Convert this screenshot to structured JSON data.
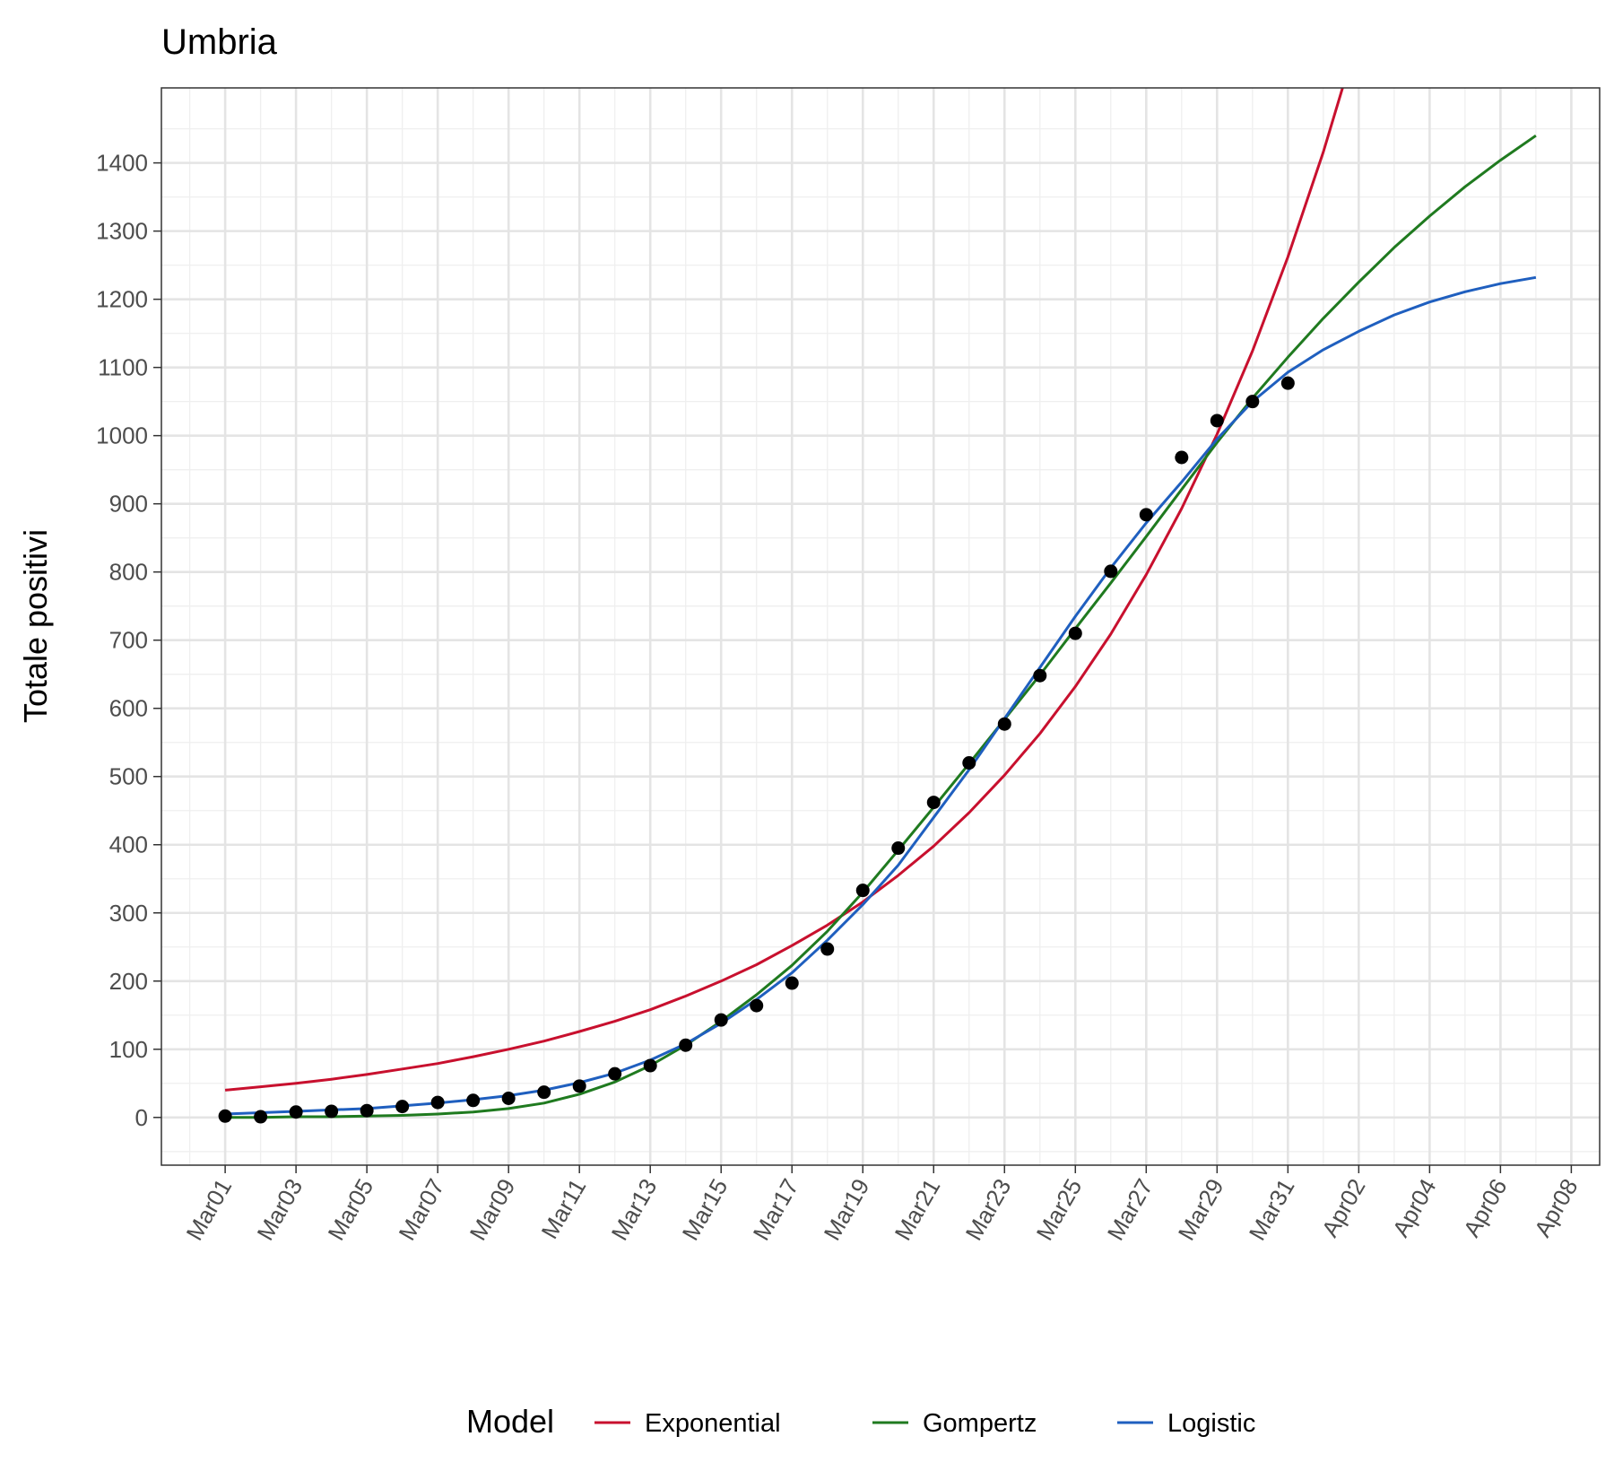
{
  "chart_data": {
    "type": "line",
    "title": "Umbria",
    "xlabel": "",
    "ylabel": "Totale positivi",
    "x_ticks": [
      "Mar01",
      "Mar03",
      "Mar05",
      "Mar07",
      "Mar09",
      "Mar11",
      "Mar13",
      "Mar15",
      "Mar17",
      "Mar19",
      "Mar21",
      "Mar23",
      "Mar25",
      "Mar27",
      "Mar29",
      "Mar31",
      "Apr02",
      "Apr04",
      "Apr06",
      "Apr08"
    ],
    "y_ticks": [
      "0",
      "100",
      "200",
      "300",
      "400",
      "500",
      "600",
      "700",
      "800",
      "900",
      "1000",
      "1100",
      "1200",
      "1300",
      "1400"
    ],
    "x_range_days": [
      -1.8,
      38.8
    ],
    "ylim": [
      -70,
      1510
    ],
    "grid": true,
    "legend": {
      "title": "Model",
      "position": "bottom",
      "entries": [
        {
          "label": "Exponential",
          "color": "#c8102e"
        },
        {
          "label": "Gompertz",
          "color": "#1f7a1f"
        },
        {
          "label": "Logistic",
          "color": "#1f5fbf"
        }
      ]
    },
    "observed": {
      "dates": [
        "Mar01",
        "Mar02",
        "Mar03",
        "Mar04",
        "Mar05",
        "Mar06",
        "Mar07",
        "Mar08",
        "Mar09",
        "Mar10",
        "Mar11",
        "Mar12",
        "Mar13",
        "Mar14",
        "Mar15",
        "Mar16",
        "Mar17",
        "Mar18",
        "Mar19",
        "Mar20",
        "Mar21",
        "Mar22",
        "Mar23",
        "Mar24",
        "Mar25",
        "Mar26",
        "Mar27",
        "Mar28",
        "Mar29",
        "Mar30",
        "Mar31"
      ],
      "values": [
        2,
        1,
        8,
        9,
        10,
        16,
        22,
        25,
        28,
        37,
        46,
        64,
        76,
        106,
        143,
        164,
        197,
        247,
        333,
        395,
        462,
        520,
        577,
        648,
        710,
        801,
        884,
        968,
        1022,
        1050,
        1077
      ]
    },
    "series": [
      {
        "name": "Exponential",
        "color": "#c8102e",
        "dates": [
          "Mar01",
          "Mar02",
          "Mar03",
          "Mar04",
          "Mar05",
          "Mar06",
          "Mar07",
          "Mar08",
          "Mar09",
          "Mar10",
          "Mar11",
          "Mar12",
          "Mar13",
          "Mar14",
          "Mar15",
          "Mar16",
          "Mar17",
          "Mar18",
          "Mar19",
          "Mar20",
          "Mar21",
          "Mar22",
          "Mar23",
          "Mar24",
          "Mar25",
          "Mar26",
          "Mar27",
          "Mar28",
          "Mar29",
          "Mar30",
          "Mar31",
          "Apr01",
          "Apr02"
        ],
        "values": [
          40,
          45,
          50,
          56,
          63,
          71,
          79,
          89,
          100,
          112,
          126,
          141,
          158,
          178,
          200,
          224,
          252,
          282,
          316,
          355,
          398,
          447,
          502,
          563,
          632,
          709,
          796,
          893,
          1002,
          1124,
          1262,
          1416,
          1589
        ]
      },
      {
        "name": "Gompertz",
        "color": "#1f7a1f",
        "dates": [
          "Mar01",
          "Mar02",
          "Mar03",
          "Mar04",
          "Mar05",
          "Mar06",
          "Mar07",
          "Mar08",
          "Mar09",
          "Mar10",
          "Mar11",
          "Mar12",
          "Mar13",
          "Mar14",
          "Mar15",
          "Mar16",
          "Mar17",
          "Mar18",
          "Mar19",
          "Mar20",
          "Mar21",
          "Mar22",
          "Mar23",
          "Mar24",
          "Mar25",
          "Mar26",
          "Mar27",
          "Mar28",
          "Mar29",
          "Mar30",
          "Mar31",
          "Apr01",
          "Apr02",
          "Apr03",
          "Apr04",
          "Apr05",
          "Apr06",
          "Apr07"
        ],
        "values": [
          0,
          0,
          1,
          1,
          2,
          3,
          5,
          8,
          13,
          21,
          34,
          52,
          76,
          106,
          141,
          180,
          223,
          273,
          330,
          392,
          455,
          519,
          584,
          649,
          717,
          784,
          852,
          921,
          990,
          1055,
          1115,
          1172,
          1225,
          1276,
          1322,
          1365,
          1404,
          1440
        ]
      },
      {
        "name": "Logistic",
        "color": "#1f5fbf",
        "dates": [
          "Mar01",
          "Mar02",
          "Mar03",
          "Mar04",
          "Mar05",
          "Mar06",
          "Mar07",
          "Mar08",
          "Mar09",
          "Mar10",
          "Mar11",
          "Mar12",
          "Mar13",
          "Mar14",
          "Mar15",
          "Mar16",
          "Mar17",
          "Mar18",
          "Mar19",
          "Mar20",
          "Mar21",
          "Mar22",
          "Mar23",
          "Mar24",
          "Mar25",
          "Mar26",
          "Mar27",
          "Mar28",
          "Mar29",
          "Mar30",
          "Mar31",
          "Apr01",
          "Apr02",
          "Apr03",
          "Apr04",
          "Apr05",
          "Apr06",
          "Apr07"
        ],
        "values": [
          5,
          7,
          9,
          11,
          13,
          17,
          21,
          26,
          32,
          40,
          51,
          65,
          84,
          108,
          138,
          173,
          212,
          260,
          312,
          370,
          440,
          510,
          585,
          660,
          735,
          806,
          872,
          932,
          995,
          1050,
          1093,
          1126,
          1153,
          1177,
          1196,
          1211,
          1223,
          1232
        ]
      }
    ]
  }
}
